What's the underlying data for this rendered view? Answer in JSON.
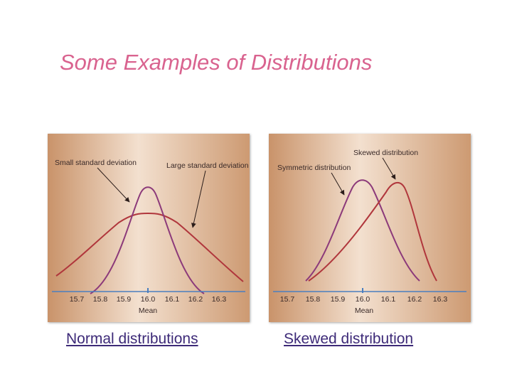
{
  "title": "Some Examples of Distributions",
  "colors": {
    "title": "#d9638f",
    "caption": "#3d2a78",
    "curve_red": "#b0363c",
    "curve_purple": "#8c3a7a",
    "axis": "#4a7fc0",
    "panel_light": "#f3e0cf",
    "panel_dark": "#c9936a"
  },
  "panels": [
    {
      "caption": "Normal distributions",
      "annotations": [
        "Small standard deviation",
        "Large standard deviation"
      ],
      "ticks": [
        "15.7",
        "15.8",
        "15.9",
        "16.0",
        "16.1",
        "16.2",
        "16.3"
      ],
      "axis_label": "Mean",
      "curves": [
        {
          "icon": "narrow-normal-curve",
          "color": "purple"
        },
        {
          "icon": "wide-normal-curve",
          "color": "red"
        }
      ]
    },
    {
      "caption": "Skewed distribution",
      "annotations": [
        "Skewed distribution",
        "Symmetric distribution"
      ],
      "ticks": [
        "15.7",
        "15.8",
        "15.9",
        "16.0",
        "16.1",
        "16.2",
        "16.3"
      ],
      "axis_label": "Mean",
      "curves": [
        {
          "icon": "symmetric-curve",
          "color": "purple"
        },
        {
          "icon": "skewed-curve",
          "color": "red"
        }
      ]
    }
  ]
}
